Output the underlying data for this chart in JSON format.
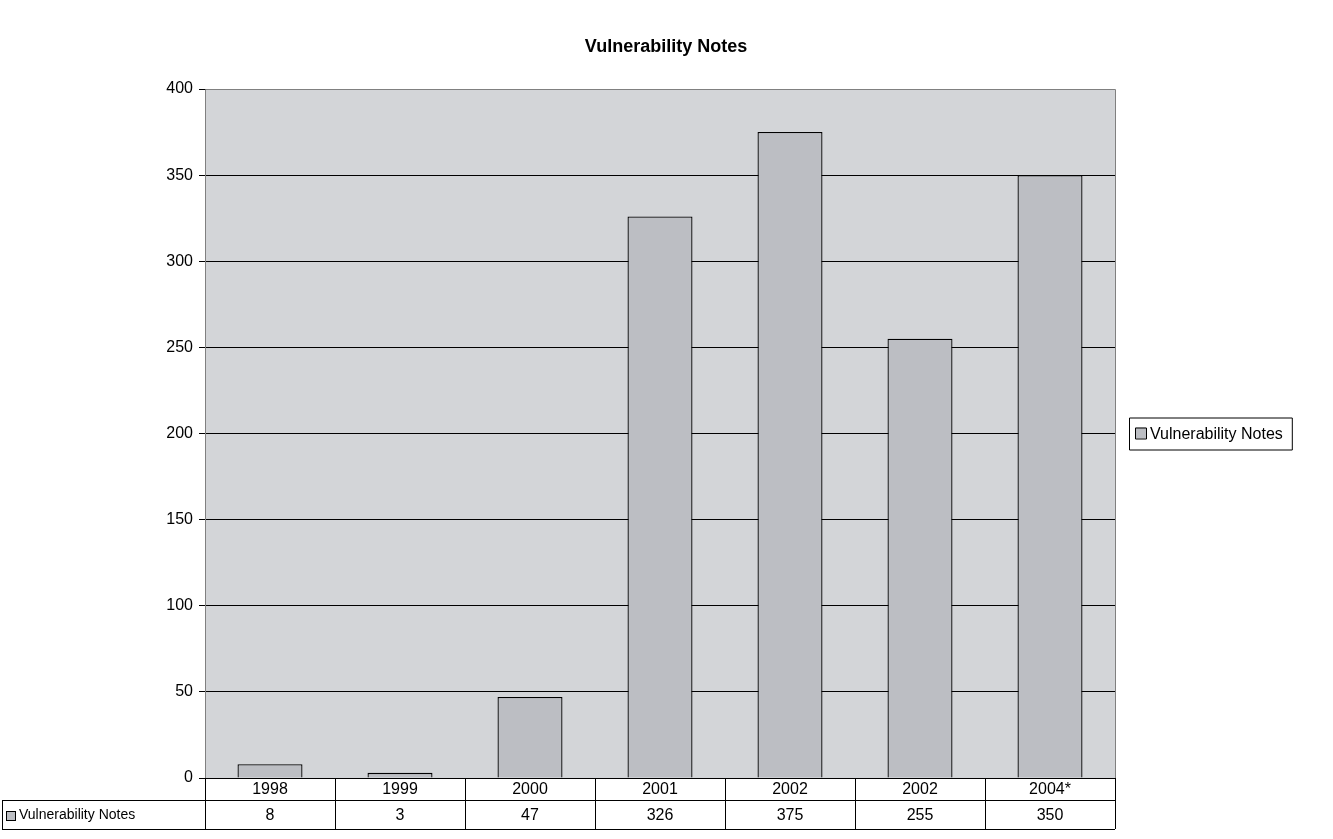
{
  "chart_data": {
    "type": "bar",
    "title": "Vulnerability Notes",
    "categories": [
      "1998",
      "1999",
      "2000",
      "2001",
      "2002",
      "2002",
      "2004*"
    ],
    "series": [
      {
        "name": "Vulnerability Notes",
        "color": "#bcbec3",
        "values": [
          8,
          3,
          47,
          326,
          375,
          255,
          350
        ]
      }
    ],
    "ylim": [
      0,
      400
    ],
    "yticks": [
      0,
      50,
      100,
      150,
      200,
      250,
      300,
      350,
      400
    ],
    "grid": "y",
    "legend": "right",
    "data_labels": true
  }
}
